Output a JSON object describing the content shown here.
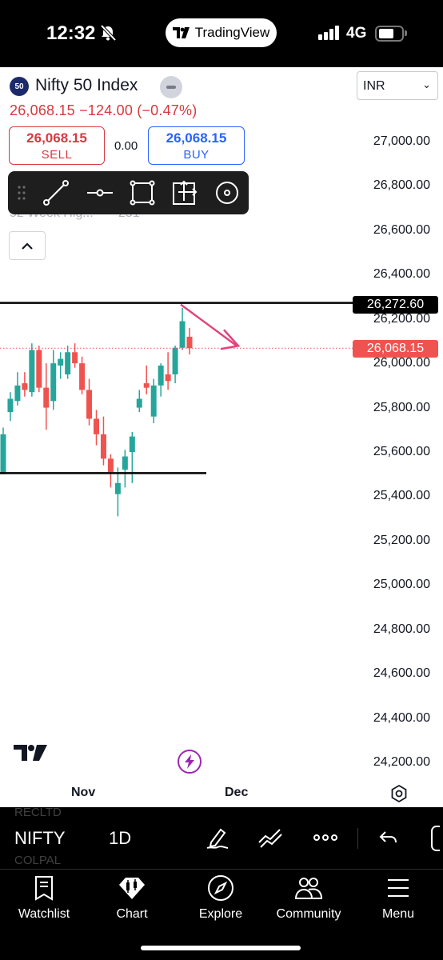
{
  "status_bar": {
    "time": "12:32",
    "center_app": "TradingView",
    "network": "4G"
  },
  "header": {
    "symbol_badge": "50",
    "symbol_title": "Nifty 50 Index",
    "currency": "INR",
    "price_line": "26,068.15 −124.00 (−0.47%)",
    "sell_price": "26,068.15",
    "sell_label": "SELL",
    "spread": "0.00",
    "buy_price": "26,068.15",
    "buy_label": "BUY",
    "ghost_indicator": "52 Week Hig...",
    "ghost_indicator_value": "251"
  },
  "drawing_toolbar": {
    "tools": [
      "drag-handle-icon",
      "trend-line-icon",
      "horizontal-ray-icon",
      "rectangle-icon",
      "move-icon",
      "circle-icon"
    ]
  },
  "chart_data": {
    "type": "candlestick",
    "y_axis_ticks": [
      "27,000.00",
      "26,800.00",
      "26,600.00",
      "26,400.00",
      "26,200.00",
      "26,000.00",
      "25,800.00",
      "25,600.00",
      "25,400.00",
      "25,200.00",
      "25,000.00",
      "24,800.00",
      "24,600.00",
      "24,400.00",
      "24,200.00"
    ],
    "x_axis_ticks": [
      "Nov",
      "Dec"
    ],
    "horizontal_line_label": "26,272.60",
    "last_price_label": "26,068.15",
    "horizontal_line_value": 26272.6,
    "support_line_value": 25505,
    "last_price_value": 26068.15,
    "up_color": "#26a69a",
    "down_color": "#ef5350",
    "candles": [
      {
        "o": 25500,
        "h": 25710,
        "l": 25500,
        "c": 25680
      },
      {
        "o": 25780,
        "h": 25870,
        "l": 25740,
        "c": 25840
      },
      {
        "o": 25830,
        "h": 25960,
        "l": 25810,
        "c": 25900
      },
      {
        "o": 25910,
        "h": 25960,
        "l": 25850,
        "c": 25880
      },
      {
        "o": 25870,
        "h": 26090,
        "l": 25850,
        "c": 26060
      },
      {
        "o": 26060,
        "h": 26080,
        "l": 25870,
        "c": 25890
      },
      {
        "o": 25890,
        "h": 26000,
        "l": 25700,
        "c": 25800
      },
      {
        "o": 25830,
        "h": 26060,
        "l": 25790,
        "c": 26000
      },
      {
        "o": 25990,
        "h": 26050,
        "l": 25930,
        "c": 26020
      },
      {
        "o": 25950,
        "h": 26080,
        "l": 25930,
        "c": 26050
      },
      {
        "o": 26050,
        "h": 26090,
        "l": 25980,
        "c": 26000
      },
      {
        "o": 26000,
        "h": 26030,
        "l": 25860,
        "c": 25880
      },
      {
        "o": 25880,
        "h": 25930,
        "l": 25720,
        "c": 25750
      },
      {
        "o": 25750,
        "h": 25790,
        "l": 25630,
        "c": 25680
      },
      {
        "o": 25680,
        "h": 25760,
        "l": 25540,
        "c": 25570
      },
      {
        "o": 25570,
        "h": 25590,
        "l": 25440,
        "c": 25510
      },
      {
        "o": 25410,
        "h": 25530,
        "l": 25310,
        "c": 25460
      },
      {
        "o": 25520,
        "h": 25610,
        "l": 25440,
        "c": 25580
      },
      {
        "o": 25600,
        "h": 25690,
        "l": 25460,
        "c": 25670
      },
      {
        "o": 25800,
        "h": 25880,
        "l": 25780,
        "c": 25840
      },
      {
        "o": 25910,
        "h": 25990,
        "l": 25860,
        "c": 25890
      },
      {
        "o": 25760,
        "h": 25930,
        "l": 25730,
        "c": 25900
      },
      {
        "o": 25900,
        "h": 26000,
        "l": 25850,
        "c": 25990
      },
      {
        "o": 25950,
        "h": 26050,
        "l": 25880,
        "c": 25920
      },
      {
        "o": 25950,
        "h": 26080,
        "l": 25910,
        "c": 26070
      },
      {
        "o": 26070,
        "h": 26250,
        "l": 26060,
        "c": 26190
      },
      {
        "o": 26120,
        "h": 26160,
        "l": 26040,
        "c": 26068
      }
    ]
  },
  "bottom_bar": {
    "ghost_symbol_top": "RECLTD",
    "ghost_symbol_bottom": "COLPAL",
    "symbol": "NIFTY",
    "interval": "1D",
    "tools": [
      "pen-icon",
      "indicators-icon",
      "more-icon",
      "undo-icon"
    ]
  },
  "nav": [
    {
      "label": "Watchlist",
      "icon": "watchlist-icon"
    },
    {
      "label": "Chart",
      "icon": "chart-icon"
    },
    {
      "label": "Explore",
      "icon": "compass-icon"
    },
    {
      "label": "Community",
      "icon": "community-icon"
    },
    {
      "label": "Menu",
      "icon": "menu-icon"
    }
  ]
}
